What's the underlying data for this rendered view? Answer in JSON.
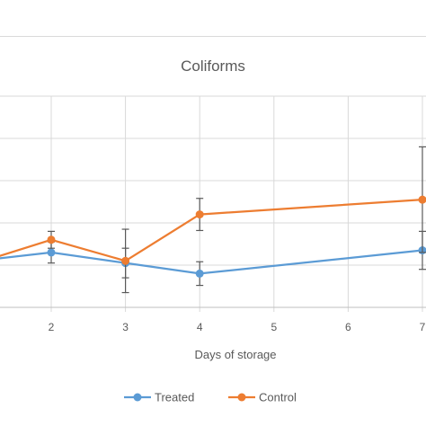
{
  "chart_data": {
    "type": "line",
    "title": "Coliforms",
    "xlabel": "Days of storage",
    "ylabel": "",
    "x": [
      1,
      2,
      3,
      4,
      7
    ],
    "x_ticks": [
      "2",
      "3",
      "4",
      "5",
      "6",
      "7"
    ],
    "xlim": [
      1.3,
      7.05
    ],
    "ylim": [
      0,
      5
    ],
    "grid": true,
    "legend": "bottom",
    "series": [
      {
        "name": "Treated",
        "color": "#5b9bd5",
        "values": [
          1.1,
          1.3,
          1.05,
          0.8,
          1.35
        ],
        "error": [
          0,
          0.25,
          0.35,
          0.28,
          0.45
        ]
      },
      {
        "name": "Control",
        "color": "#ed7d31",
        "values": [
          1.05,
          1.6,
          1.1,
          2.2,
          2.55
        ],
        "error": [
          0,
          0.2,
          0.75,
          0.38,
          1.25
        ]
      }
    ]
  }
}
